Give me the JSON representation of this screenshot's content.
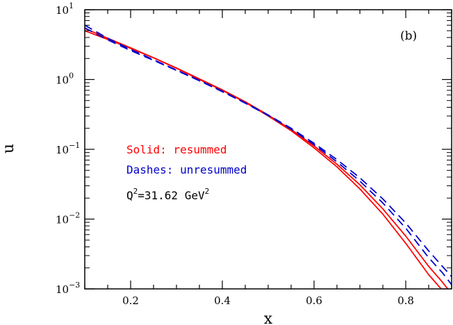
{
  "chart_data": {
    "type": "line",
    "panel_label": "(b)",
    "xlabel": "x",
    "ylabel": "u",
    "xlim": [
      0.1,
      0.9
    ],
    "ylim": [
      0.001,
      10
    ],
    "yscale": "log",
    "x_ticks": [
      0.2,
      0.4,
      0.6,
      0.8
    ],
    "x_tick_labels": [
      "0.2",
      "0.4",
      "0.6",
      "0.8"
    ],
    "y_ticks": [
      {
        "exp": -3,
        "base": "10",
        "sup": "−3"
      },
      {
        "exp": -2,
        "base": "10",
        "sup": "−2"
      },
      {
        "exp": -1,
        "base": "10",
        "sup": "−1"
      },
      {
        "exp": 0,
        "base": "10",
        "sup": "0"
      },
      {
        "exp": 1,
        "base": "10",
        "sup": "1"
      }
    ],
    "annotations": {
      "solid": "Solid: resummed",
      "dashes": "Dashes: unresummed",
      "q2_prefix": "Q",
      "q2_sup": "2",
      "q2_value": "=31.62 GeV",
      "q2_unit_sup": "2"
    },
    "colors": {
      "resummed": "#ff0000",
      "unresummed": "#0000cc",
      "axes": "#000000"
    },
    "series": [
      {
        "style": "solid",
        "color": "#ff0000",
        "x": [
          0.1,
          0.15,
          0.2,
          0.25,
          0.3,
          0.35,
          0.4,
          0.45,
          0.5,
          0.55,
          0.6,
          0.65,
          0.7,
          0.75,
          0.8,
          0.85,
          0.88,
          0.9
        ],
        "y": [
          5.4,
          3.9,
          2.85,
          2.05,
          1.45,
          1.0,
          0.7,
          0.47,
          0.3,
          0.185,
          0.105,
          0.056,
          0.027,
          0.0118,
          0.0045,
          0.0016,
          0.00095,
          0.00062
        ]
      },
      {
        "style": "solid",
        "color": "#ff0000",
        "x": [
          0.1,
          0.15,
          0.2,
          0.25,
          0.3,
          0.35,
          0.4,
          0.45,
          0.5,
          0.55,
          0.6,
          0.65,
          0.7,
          0.75,
          0.8,
          0.85,
          0.88,
          0.9
        ],
        "y": [
          5.0,
          3.75,
          2.8,
          2.05,
          1.46,
          1.02,
          0.71,
          0.48,
          0.31,
          0.192,
          0.112,
          0.061,
          0.031,
          0.014,
          0.0057,
          0.0021,
          0.00125,
          0.00085
        ]
      },
      {
        "style": "dashed",
        "color": "#0000cc",
        "x": [
          0.1,
          0.15,
          0.2,
          0.25,
          0.3,
          0.35,
          0.4,
          0.45,
          0.5,
          0.55,
          0.6,
          0.65,
          0.7,
          0.75,
          0.8,
          0.85,
          0.88,
          0.9
        ],
        "y": [
          6.0,
          3.9,
          2.7,
          1.92,
          1.37,
          0.97,
          0.68,
          0.465,
          0.31,
          0.2,
          0.122,
          0.071,
          0.039,
          0.0195,
          0.0088,
          0.0035,
          0.0021,
          0.0015
        ]
      },
      {
        "style": "dashed",
        "color": "#0000cc",
        "x": [
          0.1,
          0.15,
          0.2,
          0.25,
          0.3,
          0.35,
          0.4,
          0.45,
          0.5,
          0.55,
          0.6,
          0.65,
          0.7,
          0.75,
          0.8,
          0.85,
          0.88,
          0.9
        ],
        "y": [
          5.5,
          3.7,
          2.6,
          1.88,
          1.35,
          0.96,
          0.67,
          0.458,
          0.305,
          0.195,
          0.117,
          0.066,
          0.035,
          0.017,
          0.0074,
          0.0028,
          0.0017,
          0.00115
        ]
      }
    ]
  }
}
